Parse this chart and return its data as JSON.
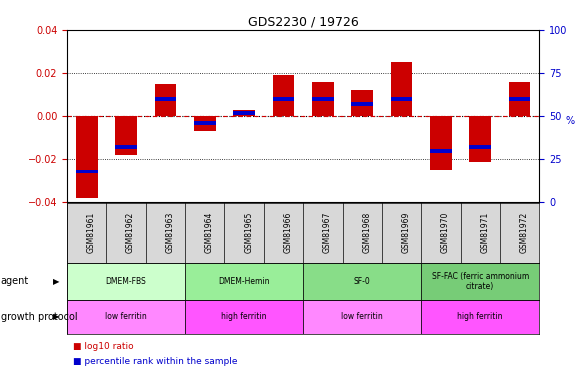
{
  "title": "GDS2230 / 19726",
  "samples": [
    "GSM81961",
    "GSM81962",
    "GSM81963",
    "GSM81964",
    "GSM81965",
    "GSM81966",
    "GSM81967",
    "GSM81968",
    "GSM81969",
    "GSM81970",
    "GSM81971",
    "GSM81972"
  ],
  "log10_ratio": [
    -0.038,
    -0.018,
    0.015,
    -0.007,
    0.003,
    0.019,
    0.016,
    0.012,
    0.025,
    -0.025,
    -0.021,
    0.016
  ],
  "percentile_rank": [
    18,
    32,
    60,
    46,
    52,
    60,
    60,
    57,
    60,
    30,
    32,
    60
  ],
  "ylim_left": [
    -0.04,
    0.04
  ],
  "ylim_right": [
    0,
    100
  ],
  "yticks_left": [
    -0.04,
    -0.02,
    0.0,
    0.02,
    0.04
  ],
  "yticks_right": [
    0,
    25,
    50,
    75,
    100
  ],
  "bar_color": "#cc0000",
  "blue_color": "#0000cc",
  "agent_groups": [
    {
      "label": "DMEM-FBS",
      "start": 0,
      "end": 3,
      "color": "#ccffcc"
    },
    {
      "label": "DMEM-Hemin",
      "start": 3,
      "end": 6,
      "color": "#99ee99"
    },
    {
      "label": "SF-0",
      "start": 6,
      "end": 9,
      "color": "#88dd88"
    },
    {
      "label": "SF-FAC (ferric ammonium\ncitrate)",
      "start": 9,
      "end": 12,
      "color": "#77cc77"
    }
  ],
  "growth_groups": [
    {
      "label": "low ferritin",
      "start": 0,
      "end": 3,
      "color": "#ff88ff"
    },
    {
      "label": "high ferritin",
      "start": 3,
      "end": 6,
      "color": "#ff55ff"
    },
    {
      "label": "low ferritin",
      "start": 6,
      "end": 9,
      "color": "#ff88ff"
    },
    {
      "label": "high ferritin",
      "start": 9,
      "end": 12,
      "color": "#ff55ff"
    }
  ],
  "background_color": "#ffffff",
  "tick_label_color_left": "#cc0000",
  "tick_label_color_right": "#0000cc"
}
